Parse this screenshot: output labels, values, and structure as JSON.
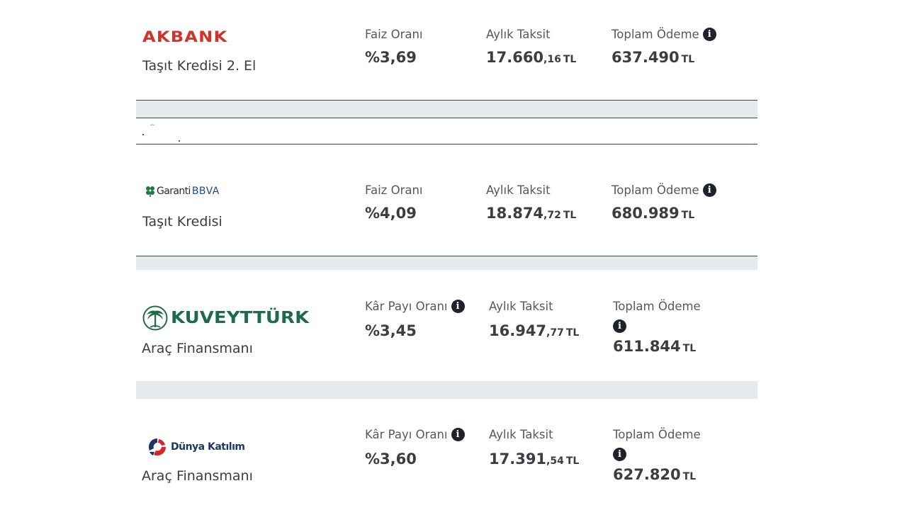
{
  "offers": [
    {
      "bank": "AKBANK",
      "logo_icon": "akbank-logo",
      "product": "Taşıt Kredisi 2. El",
      "rate_label": "Faiz Oranı",
      "rate": "%3,69",
      "installment_label": "Aylık Taksit",
      "installment_int": "17.660",
      "installment_dec": ",16",
      "total_label": "Toplam Ödeme",
      "total": "637.490",
      "currency": "TL"
    },
    {
      "bank_primary": "Garanti",
      "bank_secondary": "BBVA",
      "logo_icon": "garanti-bbva-logo",
      "product": "Taşıt Kredisi",
      "rate_label": "Faiz Oranı",
      "rate": "%4,09",
      "installment_label": "Aylık Taksit",
      "installment_int": "18.874",
      "installment_dec": ",72",
      "total_label": "Toplam Ödeme",
      "total": "680.989",
      "currency": "TL"
    },
    {
      "bank": "KUVEYTTÜRK",
      "logo_icon": "kuveytturk-logo",
      "product": "Araç Finansmanı",
      "rate_label": "Kâr Payı Oranı",
      "rate": "%3,45",
      "installment_label": "Aylık Taksit",
      "installment_int": "16.947",
      "installment_dec": ",77",
      "total_label": "Toplam Ödeme",
      "total": "611.844",
      "currency": "TL"
    },
    {
      "bank": "Dünya Katılım",
      "logo_icon": "dunya-katilim-logo",
      "product": "Araç Finansmanı",
      "rate_label": "Kâr Payı Oranı",
      "rate": "%3,60",
      "installment_label": "Aylık Taksit",
      "installment_int": "17.391",
      "installment_dec": ",54",
      "total_label": "Toplam Ödeme",
      "total": "627.820",
      "currency": "TL"
    }
  ],
  "icons": {
    "info": "info-icon"
  },
  "colors": {
    "akbank_red": "#d0322c",
    "kuveyt_green": "#1e6b48",
    "garanti_blue": "#1a4f8c",
    "dunya_navy": "#1c3766",
    "separator": "#e8ebee",
    "rule": "#35465a"
  }
}
